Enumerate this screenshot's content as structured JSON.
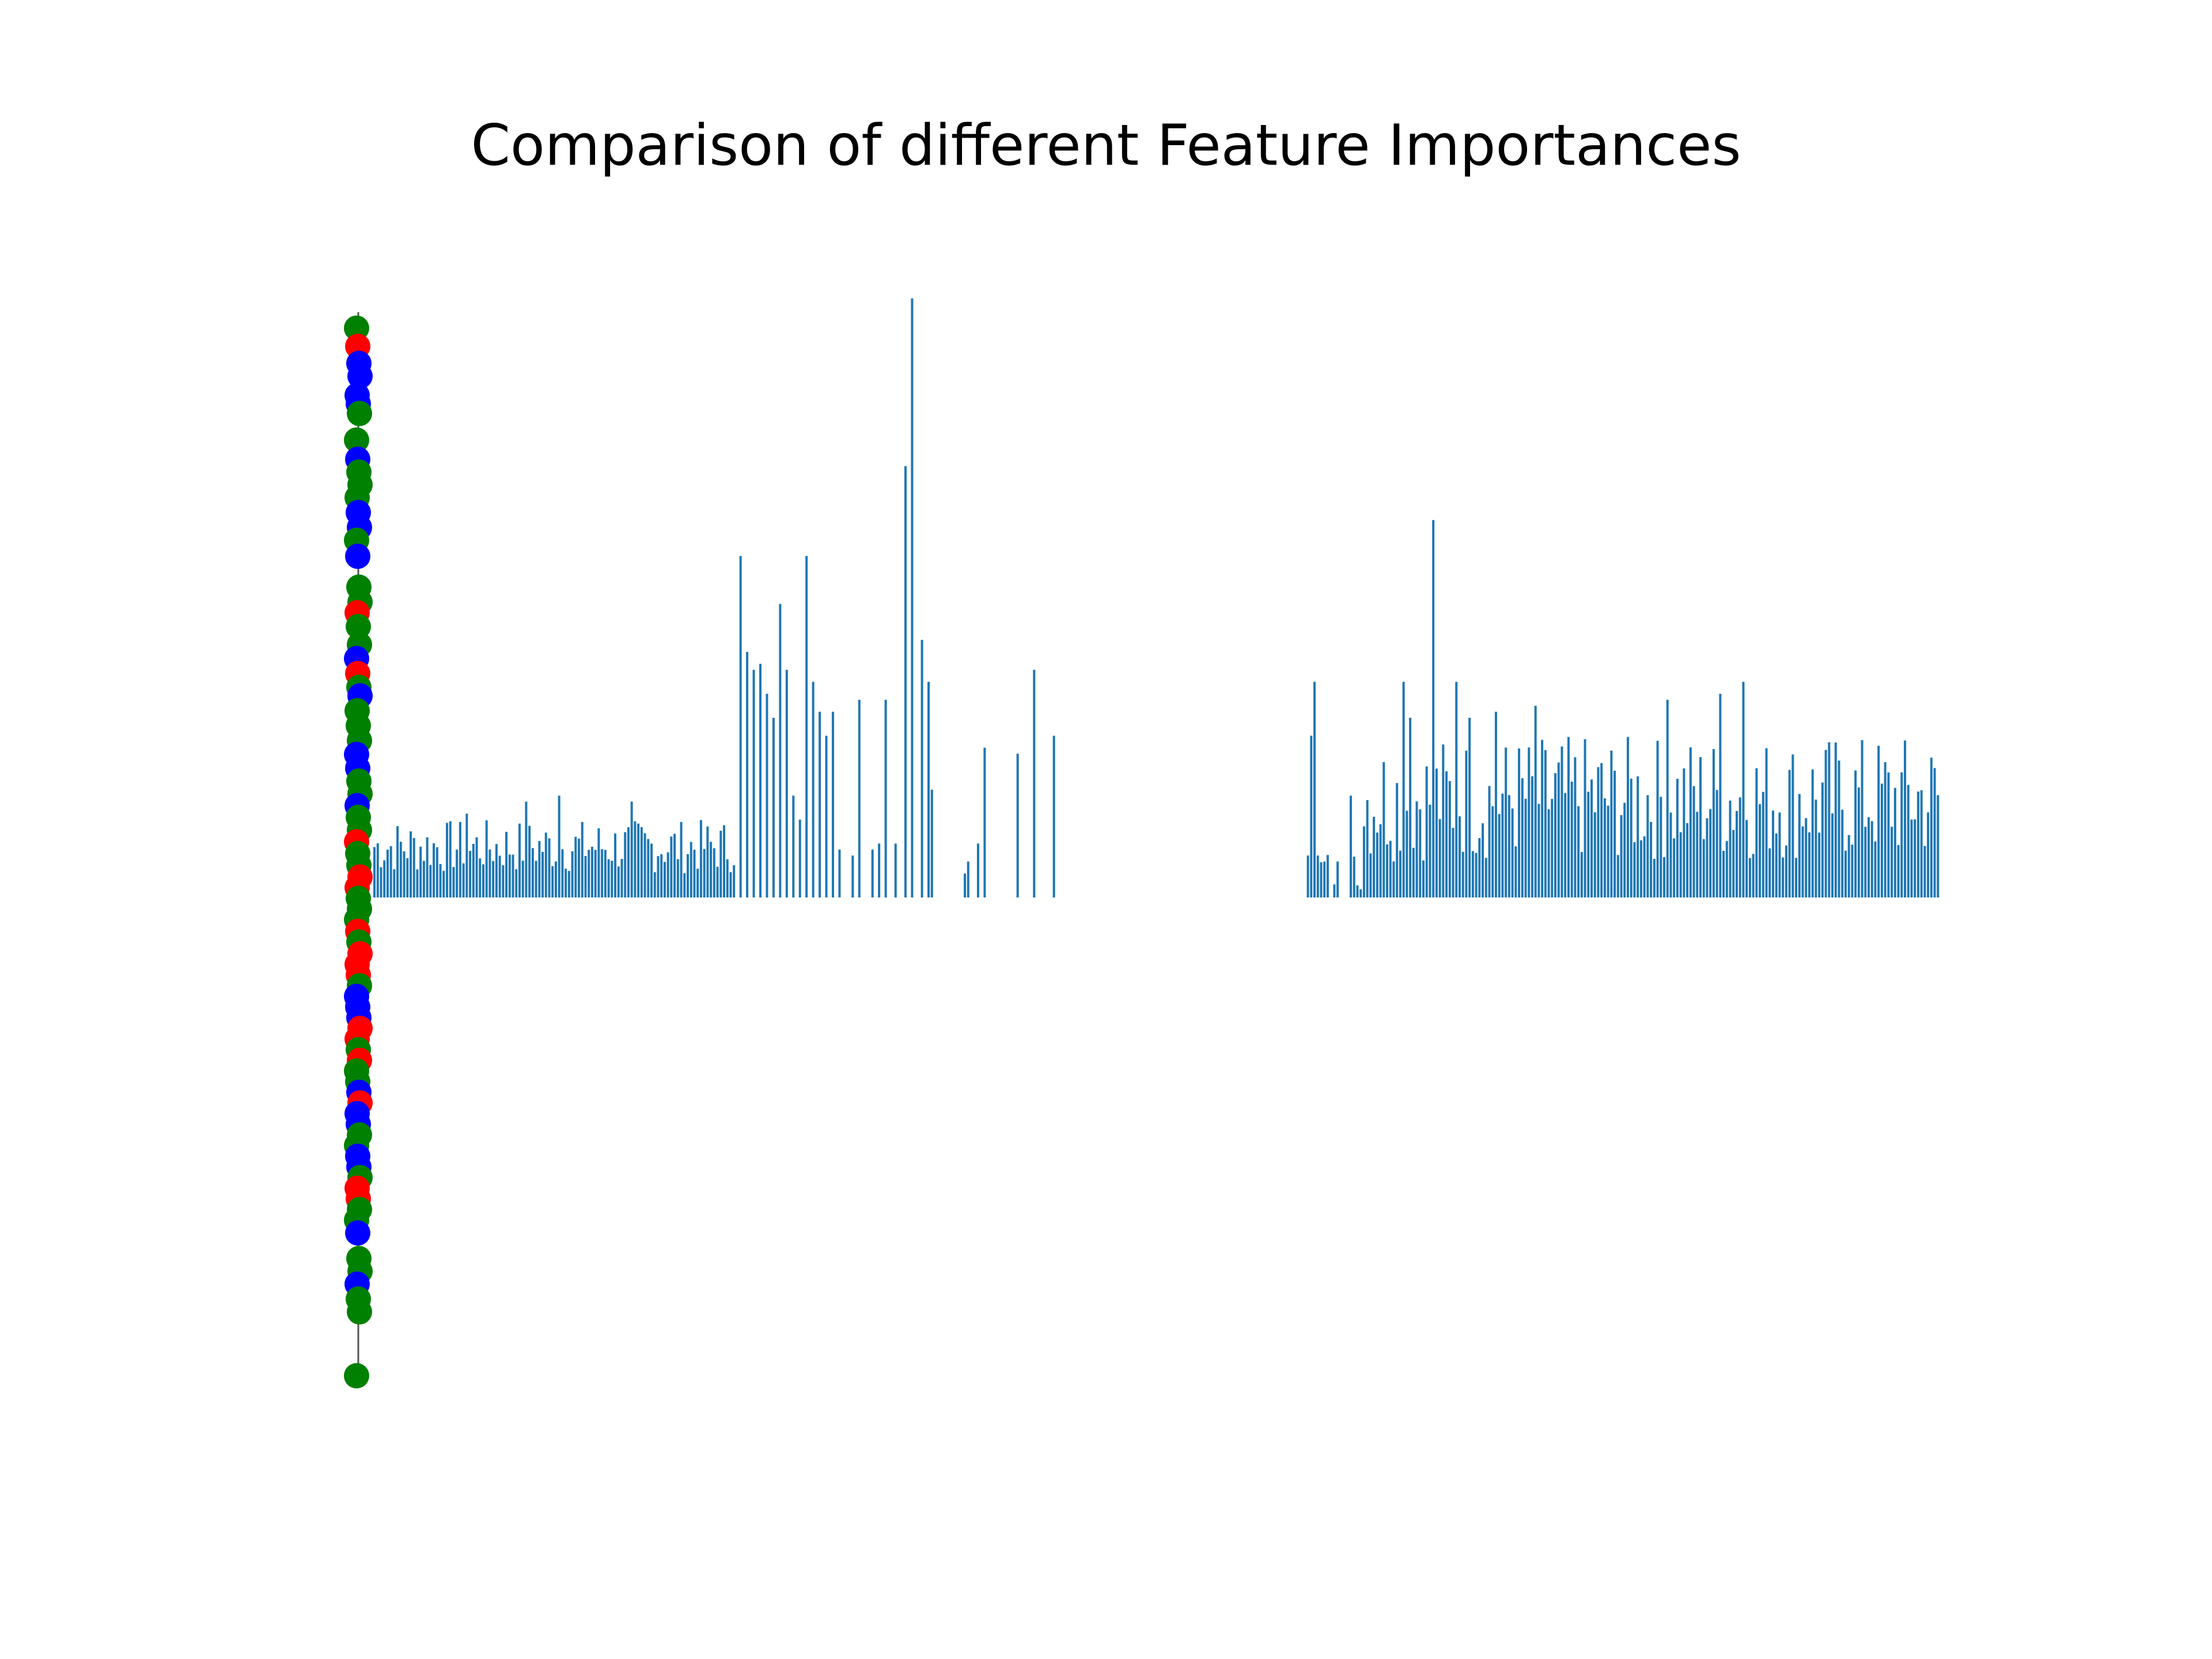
{
  "title": "Comparison of different Feature Importances",
  "colors": {
    "bars": "#1f77b4",
    "stem": "#555555",
    "marker_green": "#008000",
    "marker_red": "#ff0000",
    "marker_blue": "#0000ff"
  },
  "chart_data": [
    {
      "type": "scatter",
      "title": "",
      "xlabel": "",
      "ylabel": "",
      "axes_visible": false,
      "grid": false,
      "x": 0,
      "xlim": [
        -1,
        1
      ],
      "ylim": [
        0,
        1
      ],
      "points": [
        {
          "y": 0.985,
          "color": "green"
        },
        {
          "y": 0.968,
          "color": "red"
        },
        {
          "y": 0.952,
          "color": "blue"
        },
        {
          "y": 0.94,
          "color": "blue"
        },
        {
          "y": 0.922,
          "color": "blue"
        },
        {
          "y": 0.914,
          "color": "blue"
        },
        {
          "y": 0.905,
          "color": "green"
        },
        {
          "y": 0.88,
          "color": "green"
        },
        {
          "y": 0.862,
          "color": "blue"
        },
        {
          "y": 0.85,
          "color": "green"
        },
        {
          "y": 0.838,
          "color": "green"
        },
        {
          "y": 0.826,
          "color": "green"
        },
        {
          "y": 0.812,
          "color": "blue"
        },
        {
          "y": 0.798,
          "color": "blue"
        },
        {
          "y": 0.786,
          "color": "green"
        },
        {
          "y": 0.771,
          "color": "blue"
        },
        {
          "y": 0.742,
          "color": "green"
        },
        {
          "y": 0.728,
          "color": "green"
        },
        {
          "y": 0.718,
          "color": "red"
        },
        {
          "y": 0.705,
          "color": "green"
        },
        {
          "y": 0.688,
          "color": "green"
        },
        {
          "y": 0.675,
          "color": "blue"
        },
        {
          "y": 0.661,
          "color": "red"
        },
        {
          "y": 0.648,
          "color": "green"
        },
        {
          "y": 0.64,
          "color": "blue"
        },
        {
          "y": 0.626,
          "color": "green"
        },
        {
          "y": 0.612,
          "color": "green"
        },
        {
          "y": 0.598,
          "color": "green"
        },
        {
          "y": 0.585,
          "color": "blue"
        },
        {
          "y": 0.572,
          "color": "blue"
        },
        {
          "y": 0.56,
          "color": "green"
        },
        {
          "y": 0.548,
          "color": "green"
        },
        {
          "y": 0.537,
          "color": "blue"
        },
        {
          "y": 0.526,
          "color": "green"
        },
        {
          "y": 0.514,
          "color": "green"
        },
        {
          "y": 0.503,
          "color": "red"
        },
        {
          "y": 0.492,
          "color": "green"
        },
        {
          "y": 0.481,
          "color": "green"
        },
        {
          "y": 0.47,
          "color": "red"
        },
        {
          "y": 0.46,
          "color": "red"
        },
        {
          "y": 0.45,
          "color": "green"
        },
        {
          "y": 0.44,
          "color": "green"
        },
        {
          "y": 0.43,
          "color": "green"
        },
        {
          "y": 0.419,
          "color": "red"
        },
        {
          "y": 0.409,
          "color": "green"
        },
        {
          "y": 0.398,
          "color": "red"
        },
        {
          "y": 0.388,
          "color": "red"
        },
        {
          "y": 0.378,
          "color": "red"
        },
        {
          "y": 0.368,
          "color": "green"
        },
        {
          "y": 0.358,
          "color": "blue"
        },
        {
          "y": 0.348,
          "color": "blue"
        },
        {
          "y": 0.338,
          "color": "blue"
        },
        {
          "y": 0.328,
          "color": "red"
        },
        {
          "y": 0.318,
          "color": "red"
        },
        {
          "y": 0.308,
          "color": "green"
        },
        {
          "y": 0.298,
          "color": "red"
        },
        {
          "y": 0.288,
          "color": "green"
        },
        {
          "y": 0.278,
          "color": "green"
        },
        {
          "y": 0.268,
          "color": "blue"
        },
        {
          "y": 0.258,
          "color": "red"
        },
        {
          "y": 0.248,
          "color": "blue"
        },
        {
          "y": 0.238,
          "color": "blue"
        },
        {
          "y": 0.228,
          "color": "green"
        },
        {
          "y": 0.218,
          "color": "green"
        },
        {
          "y": 0.208,
          "color": "blue"
        },
        {
          "y": 0.198,
          "color": "blue"
        },
        {
          "y": 0.188,
          "color": "green"
        },
        {
          "y": 0.178,
          "color": "red"
        },
        {
          "y": 0.168,
          "color": "red"
        },
        {
          "y": 0.158,
          "color": "green"
        },
        {
          "y": 0.148,
          "color": "green"
        },
        {
          "y": 0.136,
          "color": "blue"
        },
        {
          "y": 0.112,
          "color": "green"
        },
        {
          "y": 0.1,
          "color": "green"
        },
        {
          "y": 0.088,
          "color": "blue"
        },
        {
          "y": 0.074,
          "color": "green"
        },
        {
          "y": 0.062,
          "color": "green"
        },
        {
          "y": 0.002,
          "color": "green"
        }
      ]
    },
    {
      "type": "bar",
      "title": "",
      "xlabel": "",
      "ylabel": "",
      "axes_visible": false,
      "grid": false,
      "xlim": [
        0,
        475
      ],
      "ylim": [
        0,
        1
      ],
      "segments": [
        {
          "start": 0,
          "end": 110,
          "kind": "dense",
          "min": 0.04,
          "max": 0.13,
          "spikes": [
            [
              28,
              0.14
            ],
            [
              46,
              0.16
            ],
            [
              56,
              0.17
            ],
            [
              78,
              0.16
            ]
          ]
        },
        {
          "start": 110,
          "end": 152,
          "kind": "sparse",
          "step": 2,
          "min": 0.08,
          "max": 0.3,
          "spikes": [
            [
              111,
              0.57
            ],
            [
              113,
              0.41
            ],
            [
              115,
              0.38
            ],
            [
              117,
              0.39
            ],
            [
              119,
              0.34
            ],
            [
              121,
              0.3
            ],
            [
              123,
              0.49
            ],
            [
              125,
              0.38
            ],
            [
              127,
              0.17
            ],
            [
              129,
              0.13
            ],
            [
              131,
              0.57
            ],
            [
              133,
              0.36
            ],
            [
              135,
              0.31
            ],
            [
              137,
              0.27
            ],
            [
              139,
              0.31
            ],
            [
              141,
              0.08
            ],
            [
              145,
              0.07
            ],
            [
              147,
              0.33
            ],
            [
              151,
              0.08
            ]
          ]
        },
        {
          "start": 152,
          "end": 170,
          "kind": "spikes",
          "spikes": [
            [
              153,
              0.09
            ],
            [
              155,
              0.33
            ],
            [
              158,
              0.09
            ],
            [
              161,
              0.72
            ],
            [
              163,
              1.0
            ],
            [
              166,
              0.43
            ],
            [
              168,
              0.36
            ],
            [
              169,
              0.18
            ]
          ]
        },
        {
          "start": 170,
          "end": 210,
          "kind": "spikes",
          "spikes": [
            [
              179,
              0.04
            ],
            [
              180,
              0.06
            ],
            [
              183,
              0.09
            ],
            [
              185,
              0.25
            ],
            [
              195,
              0.24
            ],
            [
              200,
              0.38
            ],
            [
              206,
              0.27
            ]
          ]
        },
        {
          "start": 283,
          "end": 300,
          "kind": "mixed",
          "min": 0.01,
          "max": 0.08,
          "spikes": [
            [
              283,
              0.07
            ],
            [
              284,
              0.27
            ],
            [
              285,
              0.36
            ],
            [
              286,
              0.07
            ],
            [
              288,
              0.06
            ],
            [
              292,
              0.06
            ],
            [
              296,
              0.17
            ]
          ]
        },
        {
          "start": 300,
          "end": 475,
          "kind": "dense",
          "min": 0.06,
          "max": 0.27,
          "spikes": [
            [
              312,
              0.36
            ],
            [
              314,
              0.3
            ],
            [
              321,
              0.63
            ],
            [
              328,
              0.36
            ],
            [
              332,
              0.3
            ],
            [
              340,
              0.31
            ],
            [
              352,
              0.32
            ],
            [
              392,
              0.33
            ],
            [
              408,
              0.34
            ],
            [
              415,
              0.36
            ]
          ]
        }
      ]
    }
  ]
}
